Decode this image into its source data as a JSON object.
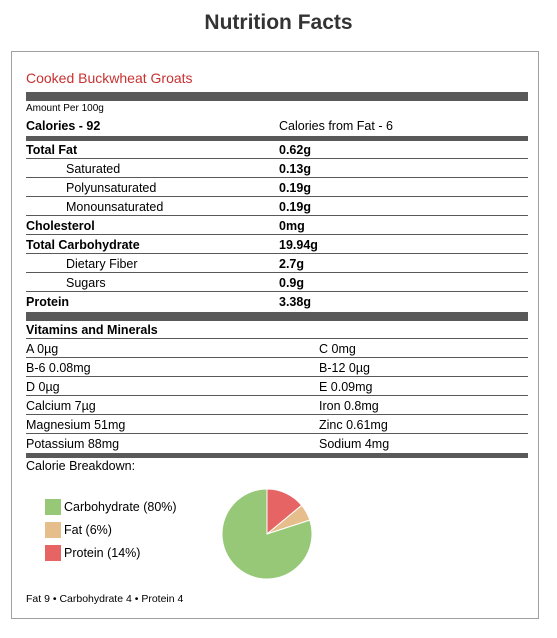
{
  "title": "Nutrition Facts",
  "food_name": "Cooked Buckwheat Groats",
  "amount_per": "Amount Per 100g",
  "calories": {
    "label": "Calories - 92",
    "fat_label": "Calories from Fat - 6"
  },
  "nutrients": [
    {
      "label": "Total Fat",
      "value": "0.62g"
    },
    {
      "label": "Saturated",
      "value": "0.13g"
    },
    {
      "label": "Polyunsaturated",
      "value": "0.19g"
    },
    {
      "label": "Monounsaturated",
      "value": "0.19g"
    },
    {
      "label": "Cholesterol",
      "value": "0mg"
    },
    {
      "label": "Total Carbohydrate",
      "value": "19.94g"
    },
    {
      "label": "Dietary Fiber",
      "value": "2.7g"
    },
    {
      "label": "Sugars",
      "value": "0.9g"
    },
    {
      "label": "Protein",
      "value": "3.38g"
    }
  ],
  "vitamins_title": "Vitamins and Minerals",
  "vitamins": [
    {
      "left": "A 0µg",
      "right": "C 0mg"
    },
    {
      "left": "B-6 0.08mg",
      "right": "B-12 0µg"
    },
    {
      "left": "D 0µg",
      "right": "E 0.09mg"
    },
    {
      "left": "Calcium 7µg",
      "right": "Iron 0.8mg"
    },
    {
      "left": "Magnesium 51mg",
      "right": "Zinc 0.61mg"
    },
    {
      "left": "Potassium 88mg",
      "right": "Sodium 4mg"
    }
  ],
  "breakdown_title": "Calorie Breakdown:",
  "legend": [
    {
      "label": "Carbohydrate (80%)",
      "color": "#96c878"
    },
    {
      "label": "Fat (6%)",
      "color": "#e6be8c"
    },
    {
      "label": "Protein (14%)",
      "color": "#e66464"
    }
  ],
  "chart_data": {
    "type": "pie",
    "categories": [
      "Carbohydrate",
      "Fat",
      "Protein"
    ],
    "values": [
      80,
      6,
      14
    ],
    "colors": [
      "#96c878",
      "#e6be8c",
      "#e66464"
    ]
  },
  "footer": "Fat 9 • Carbohydrate 4 • Protein 4"
}
